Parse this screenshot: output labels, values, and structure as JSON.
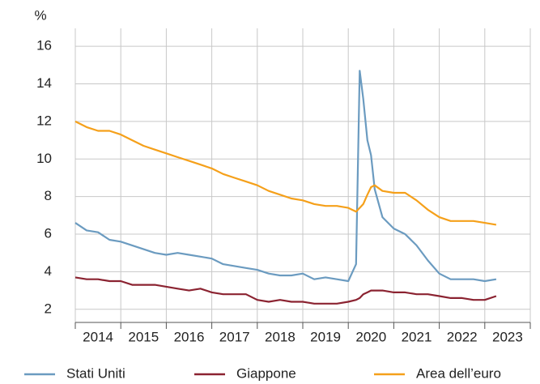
{
  "chart_data": {
    "type": "line",
    "y_label": "%",
    "x": [
      2014.0,
      2014.25,
      2014.5,
      2014.75,
      2015.0,
      2015.25,
      2015.5,
      2015.75,
      2016.0,
      2016.25,
      2016.5,
      2016.75,
      2017.0,
      2017.25,
      2017.5,
      2017.75,
      2018.0,
      2018.25,
      2018.5,
      2018.75,
      2019.0,
      2019.25,
      2019.5,
      2019.75,
      2020.0,
      2020.17,
      2020.25,
      2020.33,
      2020.42,
      2020.5,
      2020.58,
      2020.75,
      2021.0,
      2021.25,
      2021.5,
      2021.75,
      2022.0,
      2022.25,
      2022.5,
      2022.75,
      2023.0,
      2023.25
    ],
    "series": [
      {
        "name": "Stati Uniti",
        "color": "#6b9bc0",
        "values": [
          6.6,
          6.2,
          6.1,
          5.7,
          5.6,
          5.4,
          5.2,
          5.0,
          4.9,
          5.0,
          4.9,
          4.8,
          4.7,
          4.4,
          4.3,
          4.2,
          4.1,
          3.9,
          3.8,
          3.8,
          3.9,
          3.6,
          3.7,
          3.6,
          3.5,
          4.4,
          14.7,
          13.2,
          11.0,
          10.2,
          8.4,
          6.9,
          6.3,
          6.0,
          5.4,
          4.6,
          3.9,
          3.6,
          3.6,
          3.6,
          3.5,
          3.6
        ]
      },
      {
        "name": "Giappone",
        "color": "#8b2331",
        "values": [
          3.7,
          3.6,
          3.6,
          3.5,
          3.5,
          3.3,
          3.3,
          3.3,
          3.2,
          3.1,
          3.0,
          3.1,
          2.9,
          2.8,
          2.8,
          2.8,
          2.5,
          2.4,
          2.5,
          2.4,
          2.4,
          2.3,
          2.3,
          2.3,
          2.4,
          2.5,
          2.6,
          2.8,
          2.9,
          3.0,
          3.0,
          3.0,
          2.9,
          2.9,
          2.8,
          2.8,
          2.7,
          2.6,
          2.6,
          2.5,
          2.5,
          2.7
        ]
      },
      {
        "name": "Area dell’euro",
        "color": "#f5a01a",
        "values": [
          12.0,
          11.7,
          11.5,
          11.5,
          11.3,
          11.0,
          10.7,
          10.5,
          10.3,
          10.1,
          9.9,
          9.7,
          9.5,
          9.2,
          9.0,
          8.8,
          8.6,
          8.3,
          8.1,
          7.9,
          7.8,
          7.6,
          7.5,
          7.5,
          7.4,
          7.2,
          7.4,
          7.6,
          8.1,
          8.5,
          8.6,
          8.3,
          8.2,
          8.2,
          7.8,
          7.3,
          6.9,
          6.7,
          6.7,
          6.7,
          6.6,
          6.5
        ]
      }
    ],
    "xlim": [
      2014,
      2024
    ],
    "xticks": [
      2014,
      2015,
      2016,
      2017,
      2018,
      2019,
      2020,
      2021,
      2022,
      2023
    ],
    "ylim": [
      1.3,
      17.3
    ],
    "yticks": [
      2,
      4,
      6,
      8,
      10,
      12,
      14,
      16
    ],
    "grid": true,
    "legend": "bottom"
  }
}
